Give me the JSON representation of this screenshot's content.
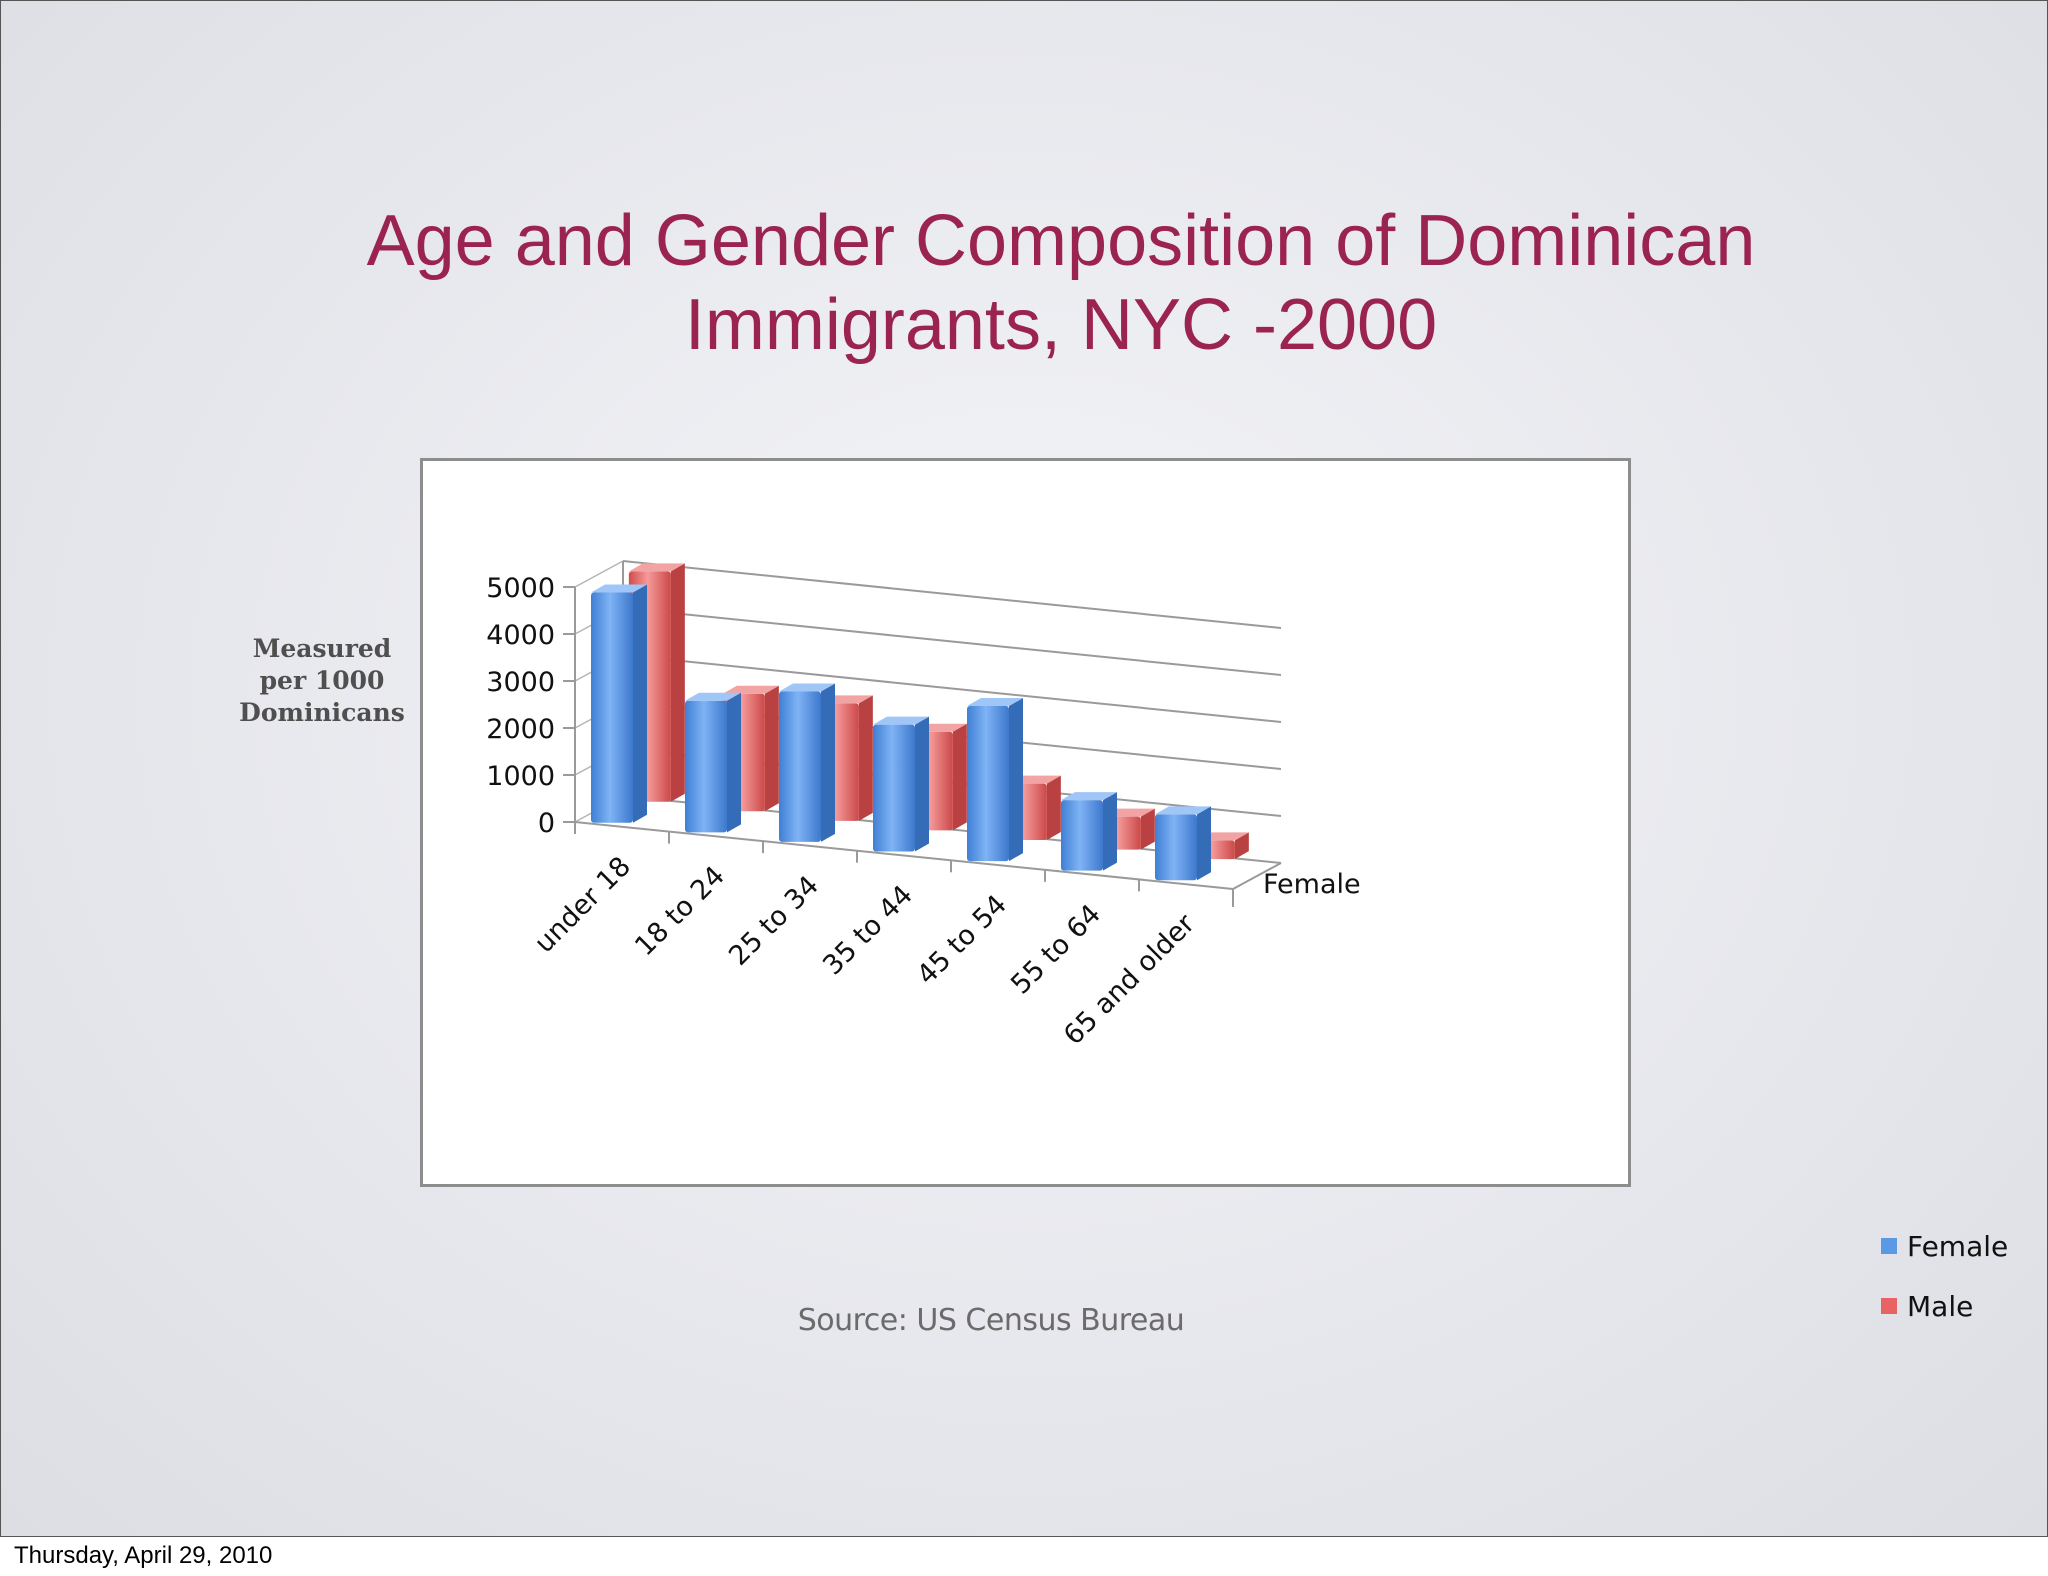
{
  "slide": {
    "title_line1": "Age and Gender Composition of Dominican",
    "title_line2": "Immigrants, NYC -2000",
    "ylabel": "Measured\nper 1000\nDominicans",
    "source": "Source: US Census Bureau",
    "date": "Thursday, April 29, 2010"
  },
  "chart_data": {
    "type": "bar",
    "categories": [
      "under 18",
      "18 to 24",
      "25 to 34",
      "35 to 44",
      "45 to 54",
      "55 to 64",
      "65 and older"
    ],
    "series": [
      {
        "name": "Female",
        "values": [
          4900,
          2800,
          3200,
          2700,
          3300,
          1500,
          1400
        ],
        "color": "#5b98e6"
      },
      {
        "name": "Male",
        "values": [
          4900,
          2500,
          2500,
          2100,
          1200,
          700,
          400
        ],
        "color": "#e86464"
      }
    ],
    "depth_axis_label": "Female",
    "yticks": [
      0,
      1000,
      2000,
      3000,
      4000,
      5000
    ],
    "ylim": [
      0,
      5000
    ],
    "grid": true,
    "legend_position": "right"
  }
}
